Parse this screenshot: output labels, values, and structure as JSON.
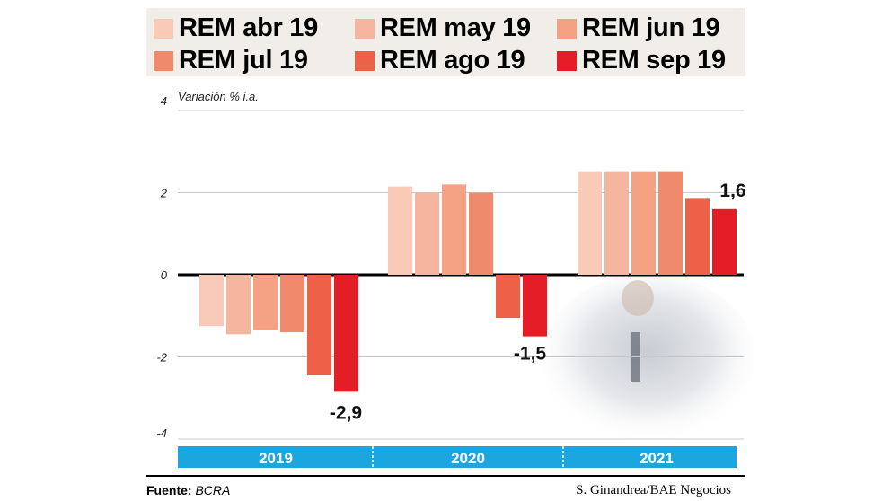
{
  "chart_data": {
    "type": "bar",
    "ylabel": "Variación % i.a.",
    "ylim": [
      -4,
      4
    ],
    "yticks": [
      "4",
      "2",
      "0",
      "-2",
      "-4"
    ],
    "ytick_values": [
      4,
      2,
      0,
      -2,
      -4
    ],
    "grid": true,
    "legend_position": "top",
    "categories": [
      "2019",
      "2020",
      "2021"
    ],
    "series": [
      {
        "name": "REM abr 19",
        "color": "#f9cab7",
        "values": [
          -1.25,
          2.15,
          2.5
        ]
      },
      {
        "name": "REM may 19",
        "color": "#f6b59e",
        "values": [
          -1.45,
          2.0,
          2.5
        ]
      },
      {
        "name": "REM jun 19",
        "color": "#f4a184",
        "values": [
          -1.35,
          2.2,
          2.5
        ]
      },
      {
        "name": "REM jul 19",
        "color": "#f08a6c",
        "values": [
          -1.4,
          2.0,
          2.5
        ]
      },
      {
        "name": "REM ago 19",
        "color": "#ec6147",
        "values": [
          -2.45,
          -1.05,
          1.85
        ]
      },
      {
        "name": "REM sep 19",
        "color": "#e51d27",
        "values": [
          -2.85,
          -1.5,
          1.6
        ]
      }
    ],
    "data_labels": [
      {
        "series": "REM sep 19",
        "category": "2019",
        "text": "-2,9"
      },
      {
        "series": "REM sep 19",
        "category": "2020",
        "text": "-1,5"
      },
      {
        "series": "REM sep 19",
        "category": "2021",
        "text": "1,6"
      }
    ],
    "year_band_color": "#1ba6e0"
  },
  "footer": {
    "source_label": "Fuente:",
    "source": "BCRA",
    "credit": "S. Ginandrea/BAE Negocios"
  }
}
